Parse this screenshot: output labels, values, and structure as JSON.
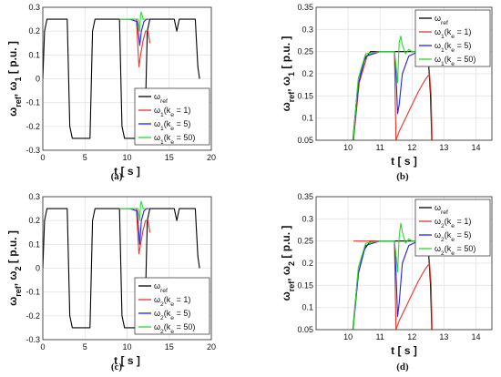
{
  "chart_data": [
    {
      "id": "a",
      "caption": "(a)",
      "type": "line",
      "xlabel": "t [ s ]",
      "ylabel": "ω_ref, ω_1 [ p.u. ]",
      "xlim": [
        0,
        20
      ],
      "ylim": [
        -0.3,
        0.3
      ],
      "xticks": [
        "0",
        "5",
        "10",
        "15",
        "20"
      ],
      "yticks": [
        "-0.3",
        "-0.2",
        "-0.1",
        "0",
        "0.1",
        "0.2",
        "0.3"
      ],
      "grid": true,
      "legend_position": "bottom-right",
      "series": [
        {
          "name": "ω_ref",
          "color": "#000000",
          "x": [
            0,
            0.2,
            0.5,
            2.9,
            3.2,
            3.5,
            5.6,
            5.9,
            6.2,
            9.1,
            9.4,
            9.7,
            12.1,
            12.4,
            12.7,
            15.6,
            15.9,
            16.2,
            18.1,
            18.4,
            18.6
          ],
          "y": [
            0,
            0.2,
            0.25,
            0.25,
            -0.2,
            -0.25,
            -0.25,
            0.2,
            0.25,
            0.25,
            -0.2,
            -0.25,
            -0.25,
            0.2,
            0.25,
            0.25,
            0.2,
            0.25,
            0.25,
            0.05,
            0
          ]
        },
        {
          "name": "ω_1(k_e = 1)",
          "color": "#e0392b",
          "x": [
            9.1,
            9.6,
            10.3,
            11.1,
            11.4,
            11.6,
            11.9,
            12.2,
            12.5,
            12.7
          ],
          "y": [
            0.25,
            0.25,
            0.25,
            0.25,
            0.05,
            0.1,
            0.16,
            0.2,
            0.2,
            0.15
          ]
        },
        {
          "name": "ω_1(k_e = 5)",
          "color": "#2426d6",
          "x": [
            9.1,
            9.6,
            10.3,
            11.2,
            11.5,
            11.7,
            12.0,
            12.3,
            12.6
          ],
          "y": [
            0.25,
            0.25,
            0.25,
            0.24,
            0.14,
            0.2,
            0.24,
            0.25,
            0.25
          ]
        },
        {
          "name": "ω_1(k_e = 50)",
          "color": "#2fd62f",
          "x": [
            9.1,
            9.6,
            10.3,
            11.3,
            11.5,
            11.6,
            11.7,
            11.9,
            12.2
          ],
          "y": [
            0.25,
            0.25,
            0.25,
            0.25,
            0.2,
            0.27,
            0.28,
            0.25,
            0.25
          ]
        }
      ]
    },
    {
      "id": "b",
      "caption": "(b)",
      "type": "line",
      "xlabel": "t [ s ]",
      "ylabel": "ω_ref, ω_1 [ p.u. ]",
      "xlim": [
        9,
        14.5
      ],
      "ylim": [
        0.05,
        0.35
      ],
      "xticks": [
        "10",
        "11",
        "12",
        "13",
        "14"
      ],
      "yticks": [
        "0.05",
        "0.1",
        "0.15",
        "0.2",
        "0.25",
        "0.3",
        "0.35"
      ],
      "grid": true,
      "legend_position": "top-right",
      "series": [
        {
          "name": "ω_ref",
          "color": "#000000",
          "x": [
            10.15,
            10.3,
            10.5,
            10.7,
            11.0,
            11.5,
            12.0,
            12.5,
            12.58,
            12.62
          ],
          "y": [
            0.05,
            0.17,
            0.23,
            0.25,
            0.25,
            0.25,
            0.25,
            0.25,
            0.15,
            0.05
          ]
        },
        {
          "name": "ω_1(k_e = 1)",
          "color": "#e0392b",
          "x": [
            10.17,
            10.35,
            10.6,
            11.0,
            11.45,
            11.5,
            11.6,
            11.8,
            12.0,
            12.2,
            12.4,
            12.55,
            12.6,
            12.63
          ],
          "y": [
            0.05,
            0.18,
            0.24,
            0.25,
            0.25,
            0.05,
            0.07,
            0.1,
            0.13,
            0.16,
            0.185,
            0.2,
            0.15,
            0.05
          ]
        },
        {
          "name": "ω_1(k_e = 5)",
          "color": "#2426d6",
          "x": [
            10.16,
            10.33,
            10.55,
            11.0,
            11.45,
            11.5,
            11.55,
            11.6,
            11.7,
            11.9,
            12.2,
            12.6
          ],
          "y": [
            0.05,
            0.18,
            0.24,
            0.25,
            0.25,
            0.2,
            0.11,
            0.13,
            0.2,
            0.24,
            0.25,
            0.25
          ]
        },
        {
          "name": "ω_1(k_e = 50)",
          "color": "#2fd62f",
          "x": [
            10.16,
            10.32,
            10.55,
            11.0,
            11.45,
            11.5,
            11.55,
            11.6,
            11.65,
            11.7,
            11.8,
            11.9,
            12.0,
            12.2,
            12.6
          ],
          "y": [
            0.05,
            0.19,
            0.245,
            0.25,
            0.25,
            0.22,
            0.18,
            0.27,
            0.285,
            0.265,
            0.245,
            0.255,
            0.25,
            0.25,
            0.25
          ]
        }
      ]
    },
    {
      "id": "c",
      "caption": "(c)",
      "type": "line",
      "xlabel": "t [ s ]",
      "ylabel": "ω_ref, ω_2 [ p.u. ]",
      "xlim": [
        0,
        20
      ],
      "ylim": [
        -0.3,
        0.3
      ],
      "xticks": [
        "0",
        "5",
        "10",
        "15",
        "20"
      ],
      "yticks": [
        "-0.3",
        "-0.2",
        "-0.1",
        "0",
        "0.1",
        "0.2",
        "0.3"
      ],
      "grid": true,
      "legend_position": "bottom-right",
      "series": [
        {
          "name": "ω_ref",
          "color": "#000000",
          "x": [
            0,
            0.2,
            0.5,
            2.9,
            3.2,
            3.5,
            5.6,
            5.9,
            6.2,
            9.1,
            9.4,
            9.7,
            12.1,
            12.4,
            12.7,
            15.6,
            15.9,
            16.2,
            18.1,
            18.4,
            18.6
          ],
          "y": [
            0,
            0.2,
            0.25,
            0.25,
            -0.2,
            -0.25,
            -0.25,
            0.2,
            0.25,
            0.25,
            -0.2,
            -0.25,
            -0.25,
            0.2,
            0.25,
            0.25,
            0.2,
            0.25,
            0.25,
            0.05,
            0
          ]
        },
        {
          "name": "ω_2(k_e = 1)",
          "color": "#e0392b",
          "x": [
            9.1,
            9.6,
            10.3,
            11.1,
            11.4,
            11.6,
            11.9,
            12.2,
            12.5,
            12.7
          ],
          "y": [
            0.25,
            0.25,
            0.25,
            0.25,
            0.06,
            0.1,
            0.16,
            0.2,
            0.2,
            0.15
          ]
        },
        {
          "name": "ω_2(k_e = 5)",
          "color": "#2426d6",
          "x": [
            9.1,
            9.6,
            10.3,
            11.2,
            11.5,
            11.7,
            12.0,
            12.3,
            12.6
          ],
          "y": [
            0.25,
            0.25,
            0.25,
            0.24,
            0.1,
            0.2,
            0.24,
            0.25,
            0.25
          ]
        },
        {
          "name": "ω_2(k_e = 50)",
          "color": "#2fd62f",
          "x": [
            9.1,
            9.6,
            10.3,
            11.3,
            11.5,
            11.6,
            11.7,
            11.9,
            12.2
          ],
          "y": [
            0.25,
            0.25,
            0.25,
            0.25,
            0.2,
            0.27,
            0.28,
            0.25,
            0.25
          ]
        }
      ]
    },
    {
      "id": "d",
      "caption": "(d)",
      "type": "line",
      "xlabel": "t [ s ]",
      "ylabel": "ω_ref, ω_2 [ p.u. ]",
      "xlim": [
        9,
        14.5
      ],
      "ylim": [
        0.05,
        0.35
      ],
      "xticks": [
        "10",
        "11",
        "12",
        "13",
        "14"
      ],
      "yticks": [
        "0.05",
        "0.1",
        "0.15",
        "0.2",
        "0.25",
        "0.3",
        "0.35"
      ],
      "grid": true,
      "legend_position": "top-right",
      "series": [
        {
          "name": "ω_ref",
          "color": "#000000",
          "x": [
            10.15,
            10.3,
            10.5,
            10.7,
            11.0,
            11.5,
            12.0,
            12.5,
            12.58,
            12.62
          ],
          "y": [
            0.05,
            0.17,
            0.23,
            0.25,
            0.25,
            0.25,
            0.25,
            0.25,
            0.15,
            0.05
          ]
        },
        {
          "name": "ω_2(k_e = 1)",
          "color": "#e0392b",
          "x": [
            10.17,
            10.35,
            10.6,
            11.0,
            11.45,
            11.5,
            11.6,
            11.8,
            12.0,
            12.2,
            12.4,
            12.55,
            12.6,
            12.63
          ],
          "y": [
            0.25,
            0.25,
            0.25,
            0.25,
            0.25,
            0.05,
            0.07,
            0.1,
            0.13,
            0.16,
            0.185,
            0.2,
            0.15,
            0.05
          ]
        },
        {
          "name": "ω_2(k_e = 5)",
          "color": "#2426d6",
          "x": [
            10.16,
            10.33,
            10.55,
            11.0,
            11.45,
            11.5,
            11.55,
            11.6,
            11.7,
            11.9,
            12.2,
            12.6
          ],
          "y": [
            0.05,
            0.18,
            0.24,
            0.25,
            0.25,
            0.18,
            0.08,
            0.11,
            0.2,
            0.24,
            0.25,
            0.25
          ]
        },
        {
          "name": "ω_2(k_e = 50)",
          "color": "#2fd62f",
          "x": [
            10.16,
            10.32,
            10.55,
            11.0,
            11.45,
            11.5,
            11.55,
            11.6,
            11.65,
            11.7,
            11.8,
            11.9,
            12.0,
            12.2,
            12.6
          ],
          "y": [
            0.05,
            0.19,
            0.245,
            0.25,
            0.25,
            0.22,
            0.18,
            0.26,
            0.29,
            0.27,
            0.245,
            0.255,
            0.25,
            0.25,
            0.25
          ]
        }
      ]
    }
  ]
}
